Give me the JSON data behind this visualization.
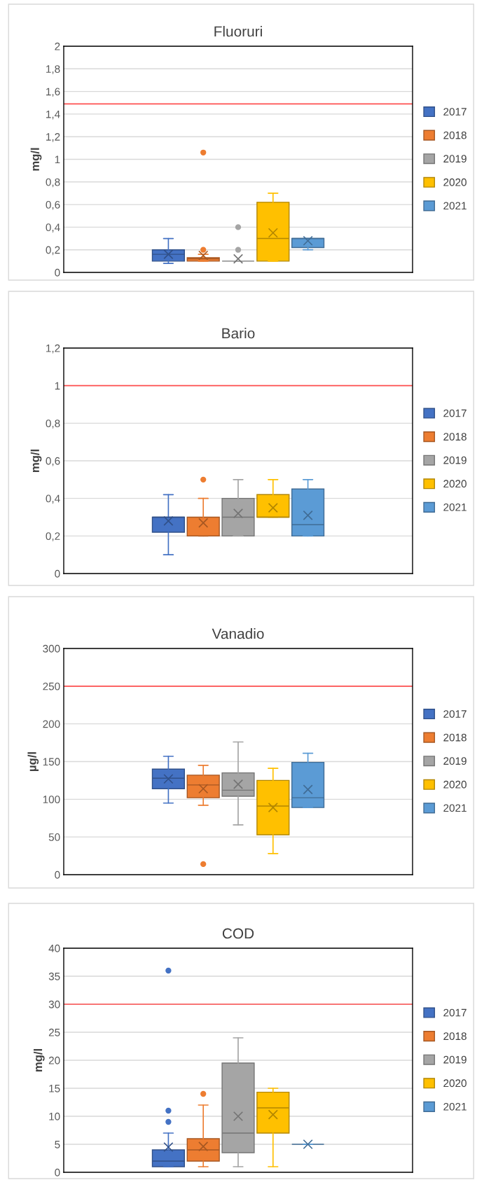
{
  "chart_data": [
    {
      "type": "box",
      "title": "Fluoruri",
      "ylabel": "mg/l",
      "categories": [
        null
      ],
      "ylim": [
        0,
        2
      ],
      "yticks": [
        0,
        {
          "value": 0.2,
          "label": "0,2"
        },
        {
          "value": 0.4,
          "label": "0,4"
        },
        {
          "value": 0.6,
          "label": "0,6"
        },
        {
          "value": 0.8,
          "label": "0,8"
        },
        1,
        {
          "value": 1.2,
          "label": "1,2"
        },
        {
          "value": 1.4,
          "label": "1,4"
        },
        {
          "value": 1.6,
          "label": "1,6"
        },
        {
          "value": 1.8,
          "label": "1,8"
        },
        2
      ],
      "grid": "y",
      "legend": "right",
      "ref_lines": [
        {
          "axis": "y",
          "value": 1.49,
          "color": "#ff5050"
        }
      ],
      "series": [
        {
          "name": "2017",
          "color": "#4472c4",
          "boxes": [
            {
              "low": 0.08,
              "q1": 0.1,
              "median": 0.16,
              "q3": 0.2,
              "high": 0.3,
              "mean": 0.16
            }
          ]
        },
        {
          "name": "2018",
          "color": "#ed7d31",
          "boxes": [
            {
              "low": 0.1,
              "q1": 0.1,
              "median": 0.12,
              "q3": 0.13,
              "high": 0.16,
              "mean": 0.15,
              "outliers": [
                0.2,
                1.06
              ]
            }
          ]
        },
        {
          "name": "2019",
          "color": "#a5a5a5",
          "boxes": [
            {
              "low": 0.1,
              "q1": 0.1,
              "median": 0.1,
              "q3": 0.1,
              "high": 0.1,
              "mean": 0.12,
              "outliers": [
                0.2,
                0.4
              ]
            }
          ]
        },
        {
          "name": "2020",
          "color": "#ffc000",
          "boxes": [
            {
              "low": 0.1,
              "q1": 0.1,
              "median": 0.3,
              "q3": 0.62,
              "high": 0.7,
              "mean": 0.35
            }
          ]
        },
        {
          "name": "2021",
          "color": "#5b9bd5",
          "boxes": [
            {
              "low": 0.2,
              "q1": 0.22,
              "median": 0.3,
              "q3": 0.3,
              "high": 0.3,
              "mean": 0.28
            }
          ]
        }
      ]
    },
    {
      "type": "box",
      "title": "Bario",
      "ylabel": "mg/l",
      "categories": [
        null
      ],
      "ylim": [
        0,
        1.2
      ],
      "yticks": [
        0,
        {
          "value": 0.2,
          "label": "0,2"
        },
        {
          "value": 0.4,
          "label": "0,4"
        },
        {
          "value": 0.6,
          "label": "0,6"
        },
        {
          "value": 0.8,
          "label": "0,8"
        },
        1,
        {
          "value": 1.2,
          "label": "1,2"
        }
      ],
      "grid": "y",
      "legend": "right",
      "ref_lines": [
        {
          "axis": "y",
          "value": 1,
          "color": "#ff5050"
        }
      ],
      "series": [
        {
          "name": "2017",
          "color": "#4472c4",
          "boxes": [
            {
              "low": 0.1,
              "q1": 0.22,
              "median": 0.3,
              "q3": 0.3,
              "high": 0.42,
              "mean": 0.28
            }
          ]
        },
        {
          "name": "2018",
          "color": "#ed7d31",
          "boxes": [
            {
              "low": 0.2,
              "q1": 0.2,
              "median": 0.2,
              "q3": 0.3,
              "high": 0.4,
              "mean": 0.27,
              "outliers": [
                0.5
              ]
            }
          ]
        },
        {
          "name": "2019",
          "color": "#a5a5a5",
          "boxes": [
            {
              "low": 0.2,
              "q1": 0.2,
              "median": 0.3,
              "q3": 0.4,
              "high": 0.5,
              "mean": 0.32
            }
          ]
        },
        {
          "name": "2020",
          "color": "#ffc000",
          "boxes": [
            {
              "low": 0.3,
              "q1": 0.3,
              "median": 0.3,
              "q3": 0.42,
              "high": 0.5,
              "mean": 0.35
            }
          ]
        },
        {
          "name": "2021",
          "color": "#5b9bd5",
          "boxes": [
            {
              "low": 0.2,
              "q1": 0.2,
              "median": 0.26,
              "q3": 0.45,
              "high": 0.5,
              "mean": 0.31
            }
          ]
        }
      ]
    },
    {
      "type": "box",
      "title": "Vanadio",
      "ylabel": "µg/l",
      "categories": [
        null
      ],
      "ylim": [
        0,
        300
      ],
      "yticks": [
        0,
        50,
        100,
        150,
        200,
        250,
        300
      ],
      "grid": "y",
      "legend": "right",
      "ref_lines": [
        {
          "axis": "y",
          "value": 250,
          "color": "#ff5050"
        }
      ],
      "series": [
        {
          "name": "2017",
          "color": "#4472c4",
          "boxes": [
            {
              "low": 95,
              "q1": 114,
              "median": 128,
              "q3": 140,
              "high": 157,
              "mean": 127
            }
          ]
        },
        {
          "name": "2018",
          "color": "#ed7d31",
          "boxes": [
            {
              "low": 92,
              "q1": 102,
              "median": 119,
              "q3": 132,
              "high": 145,
              "mean": 114,
              "outliers": [
                14
              ]
            }
          ]
        },
        {
          "name": "2019",
          "color": "#a5a5a5",
          "boxes": [
            {
              "low": 66,
              "q1": 104,
              "median": 112,
              "q3": 135,
              "high": 176,
              "mean": 120
            }
          ]
        },
        {
          "name": "2020",
          "color": "#ffc000",
          "boxes": [
            {
              "low": 28,
              "q1": 53,
              "median": 91,
              "q3": 125,
              "high": 141,
              "mean": 89
            }
          ]
        },
        {
          "name": "2021",
          "color": "#5b9bd5",
          "boxes": [
            {
              "low": 89,
              "q1": 89,
              "median": 102,
              "q3": 149,
              "high": 161,
              "mean": 113
            }
          ]
        }
      ]
    },
    {
      "type": "box",
      "title": "COD",
      "ylabel": "mg/l",
      "categories": [
        null
      ],
      "ylim": [
        0,
        40
      ],
      "yticks": [
        0,
        5,
        10,
        15,
        20,
        25,
        30,
        35,
        40
      ],
      "grid": "y",
      "legend": "right",
      "ref_lines": [
        {
          "axis": "y",
          "value": 30,
          "color": "#ff5050"
        }
      ],
      "series": [
        {
          "name": "2017",
          "color": "#4472c4",
          "boxes": [
            {
              "low": 1,
              "q1": 1,
              "median": 2,
              "q3": 4,
              "high": 7,
              "mean": 4.5,
              "outliers": [
                9,
                11,
                36
              ]
            }
          ]
        },
        {
          "name": "2018",
          "color": "#ed7d31",
          "boxes": [
            {
              "low": 1,
              "q1": 2,
              "median": 4,
              "q3": 6,
              "high": 12,
              "mean": 4.6,
              "outliers": [
                14
              ]
            }
          ]
        },
        {
          "name": "2019",
          "color": "#a5a5a5",
          "boxes": [
            {
              "low": 1,
              "q1": 3.5,
              "median": 7,
              "q3": 19.5,
              "high": 24,
              "mean": 10
            }
          ]
        },
        {
          "name": "2020",
          "color": "#ffc000",
          "boxes": [
            {
              "low": 1,
              "q1": 7,
              "median": 11.5,
              "q3": 14.3,
              "high": 15,
              "mean": 10.3
            }
          ]
        },
        {
          "name": "2021",
          "color": "#5b9bd5",
          "boxes": [
            {
              "low": 5,
              "q1": 5,
              "median": 5,
              "q3": 5,
              "high": 5,
              "mean": 5
            }
          ]
        }
      ]
    }
  ]
}
